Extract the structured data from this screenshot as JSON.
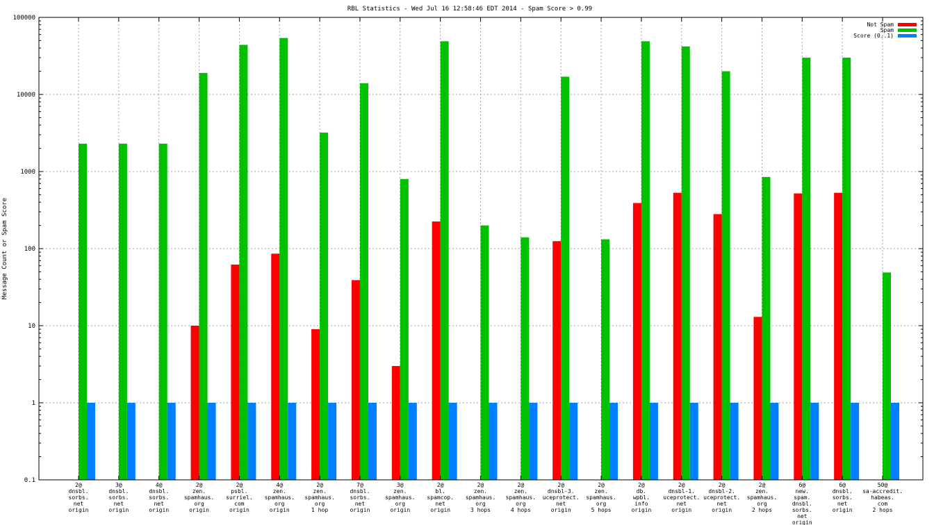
{
  "chart_data": {
    "type": "bar",
    "title": "RBL Statistics - Wed Jul 16 12:58:46 EDT 2014 - Spam Score > 0.99",
    "xlabel": "",
    "ylabel": "Message Count or Spam Score",
    "yscale": "log",
    "ylim": [
      0.1,
      100000
    ],
    "yticks": [
      "0.1",
      "1",
      "10",
      "100",
      "1000",
      "10000",
      "100000"
    ],
    "grid": true,
    "legend_position": "top-right",
    "categories": [
      [
        "2@",
        "dnsbl.",
        "sorbs.",
        "net",
        "origin"
      ],
      [
        "3@",
        "dnsbl.",
        "sorbs.",
        "net",
        "origin"
      ],
      [
        "4@",
        "dnsbl.",
        "sorbs.",
        "net",
        "origin"
      ],
      [
        "2@",
        "zen.",
        "spamhaus.",
        "org",
        "origin"
      ],
      [
        "2@",
        "psbl.",
        "surriel.",
        "com",
        "origin"
      ],
      [
        "4@",
        "zen.",
        "spamhaus.",
        "org",
        "origin"
      ],
      [
        "2@",
        "zen.",
        "spamhaus.",
        "org",
        "1 hop"
      ],
      [
        "7@",
        "dnsbl.",
        "sorbs.",
        "net",
        "origin"
      ],
      [
        "3@",
        "zen.",
        "spamhaus.",
        "org",
        "origin"
      ],
      [
        "2@",
        "bl.",
        "spamcop.",
        "net",
        "origin"
      ],
      [
        "2@",
        "zen.",
        "spamhaus.",
        "org",
        "3 hops"
      ],
      [
        "2@",
        "zen.",
        "spamhaus.",
        "org",
        "4 hops"
      ],
      [
        "2@",
        "dnsbl-3.",
        "uceprotect.",
        "net",
        "origin"
      ],
      [
        "2@",
        "zen.",
        "spamhaus.",
        "org",
        "5 hops"
      ],
      [
        "2@",
        "db.",
        "wpbl.",
        "info",
        "origin"
      ],
      [
        "2@",
        "dnsbl-1.",
        "uceprotect.",
        "net",
        "origin"
      ],
      [
        "2@",
        "dnsbl-2.",
        "uceprotect.",
        "net",
        "origin"
      ],
      [
        "2@",
        "zen.",
        "spamhaus.",
        "org",
        "2 hops"
      ],
      [
        "6@",
        "new.",
        "spam.",
        "dnsbl.",
        "sorbs.",
        "net",
        "origin"
      ],
      [
        "6@",
        "dnsbl.",
        "sorbs.",
        "net",
        "origin"
      ],
      [
        "50@",
        "sa-accredit.",
        "habeas.",
        "com",
        "2 hops"
      ]
    ],
    "series": [
      {
        "name": "Not Spam",
        "color": "#ff0000",
        "values": [
          0,
          0,
          0,
          10,
          62,
          86,
          9,
          39,
          3,
          225,
          0,
          0,
          125,
          0,
          390,
          530,
          280,
          13,
          520,
          530,
          0
        ]
      },
      {
        "name": "Spam",
        "color": "#00c000",
        "values": [
          2300,
          2300,
          2300,
          19000,
          44000,
          54000,
          3200,
          14000,
          800,
          49000,
          200,
          140,
          17000,
          132,
          49000,
          42000,
          20000,
          850,
          30000,
          30000,
          49
        ]
      },
      {
        "name": "Score (0..1)",
        "color": "#0080ff",
        "values": [
          1,
          1,
          1,
          1,
          1,
          1,
          1,
          1,
          1,
          1,
          1,
          1,
          1,
          1,
          1,
          1,
          1,
          1,
          1,
          1,
          1
        ]
      }
    ]
  }
}
